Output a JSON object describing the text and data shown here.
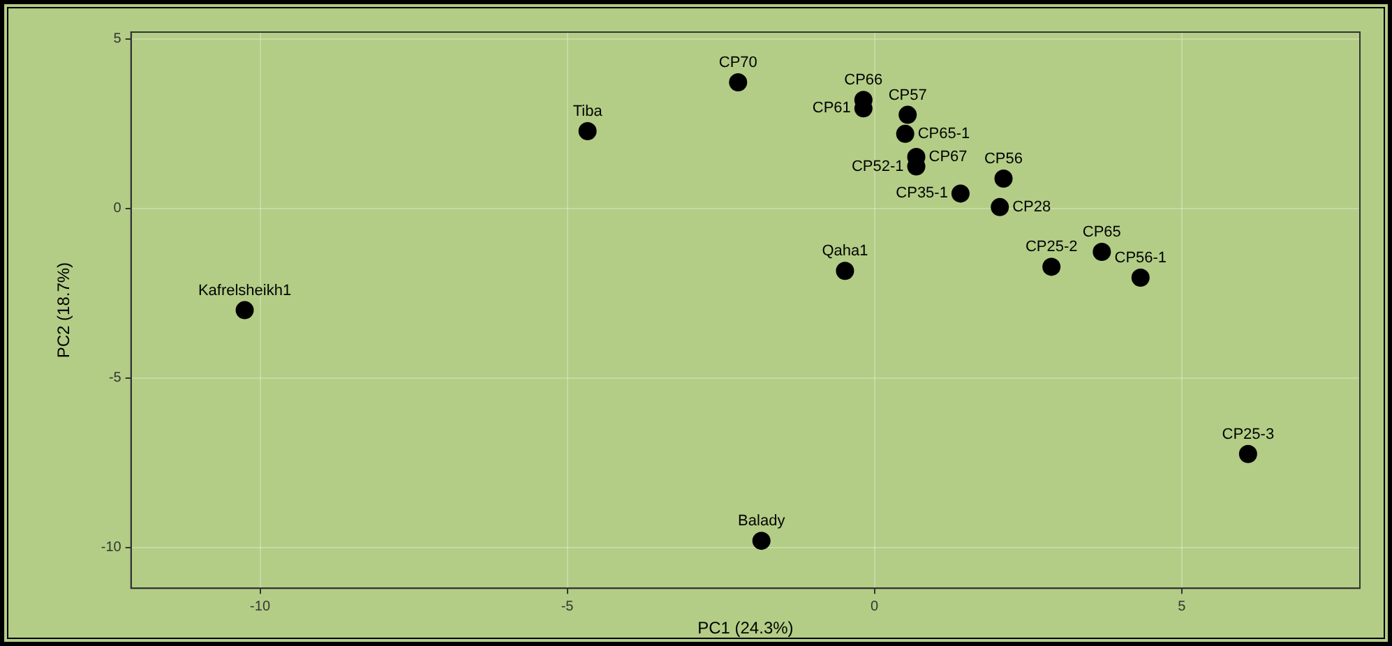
{
  "chart_data": {
    "type": "scatter",
    "xlabel": "PC1 (24.3%)",
    "ylabel": "PC2 (18.7%)",
    "series": [
      {
        "color": "#000000",
        "x": [
          -2.22,
          -4.67,
          -10.25,
          -1.84,
          -0.48,
          -0.18,
          -0.18,
          0.54,
          0.5,
          0.68,
          0.68,
          2.1,
          1.4,
          2.04,
          3.7,
          2.88,
          4.33,
          6.08
        ],
        "values": [
          3.72,
          2.28,
          -3.0,
          -9.8,
          -1.84,
          3.2,
          2.95,
          2.76,
          2.2,
          1.52,
          1.24,
          0.88,
          0.44,
          0.04,
          -1.28,
          -1.72,
          -2.04,
          -7.24
        ]
      }
    ],
    "annotations": [
      {
        "text": "CP70",
        "x": -2.22,
        "y": 3.72
      },
      {
        "text": "Tiba",
        "x": -4.67,
        "y": 2.28
      },
      {
        "text": "Kafrelsheikh1",
        "x": -10.25,
        "y": -3.0
      },
      {
        "text": "Balady",
        "x": -1.84,
        "y": -9.8
      },
      {
        "text": "Qaha1",
        "x": -0.48,
        "y": -1.84
      },
      {
        "text": "CP66",
        "x": -0.18,
        "y": 3.2
      },
      {
        "text": "CP61",
        "x": -0.18,
        "y": 2.95
      },
      {
        "text": "CP57",
        "x": 0.54,
        "y": 2.76
      },
      {
        "text": "CP65-1",
        "x": 0.5,
        "y": 2.2
      },
      {
        "text": "CP67",
        "x": 0.68,
        "y": 1.52
      },
      {
        "text": "CP52-1",
        "x": 0.68,
        "y": 1.24
      },
      {
        "text": "CP56",
        "x": 2.1,
        "y": 0.88
      },
      {
        "text": "CP35-1",
        "x": 1.4,
        "y": 0.44
      },
      {
        "text": "CP28",
        "x": 2.04,
        "y": 0.04
      },
      {
        "text": "CP65",
        "x": 3.7,
        "y": -1.28
      },
      {
        "text": "CP25-2",
        "x": 2.88,
        "y": -1.72
      },
      {
        "text": "CP56-1",
        "x": 4.33,
        "y": -2.04
      },
      {
        "text": "CP25-3",
        "x": 6.08,
        "y": -7.24
      }
    ],
    "xlim": [
      -12.1,
      7.9
    ],
    "xticks": [
      -10,
      -5,
      0,
      5
    ],
    "ylim": [
      -11.2,
      5.2
    ],
    "yticks": [
      -10,
      -5,
      0,
      5
    ],
    "grid": true,
    "legend": false,
    "marker": "circle"
  }
}
